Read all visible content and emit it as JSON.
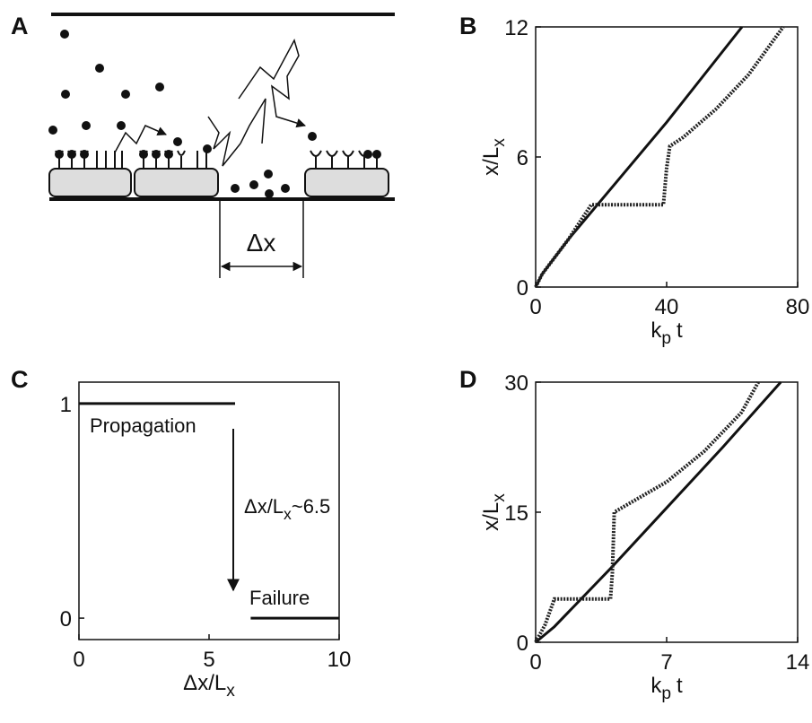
{
  "diagram": {
    "label": "A",
    "annotation": "Δx"
  },
  "chart_data": [
    {
      "type": "line",
      "label": "B",
      "xlabel": [
        "k",
        "p",
        "t"
      ],
      "ylabel": [
        "x/L",
        "x"
      ],
      "xlim": [
        0,
        80
      ],
      "ylim": [
        0,
        12
      ],
      "xticks": [
        0,
        40,
        80
      ],
      "yticks": [
        0,
        6,
        12
      ],
      "series": [
        {
          "color": "#111111",
          "style": "solid",
          "x": [
            0,
            2,
            10,
            20,
            40,
            63
          ],
          "values": [
            0,
            0.6,
            2.2,
            4.0,
            7.6,
            12
          ]
        },
        {
          "color": "#222222",
          "style": "dotted",
          "x": [
            0,
            2,
            10,
            17,
            39,
            40,
            41,
            45,
            55,
            65,
            75.6
          ],
          "values": [
            0,
            0.6,
            2.2,
            3.8,
            3.8,
            5.5,
            6.5,
            6.9,
            8.2,
            9.8,
            12
          ]
        }
      ]
    },
    {
      "type": "line",
      "label": "C",
      "xlabel": [
        "Δx/L",
        "x"
      ],
      "xlim": [
        0,
        10
      ],
      "ylim": [
        -0.1,
        1.1
      ],
      "xticks": [
        0,
        5,
        10
      ],
      "yticks": [
        0,
        1
      ],
      "annotations": [
        "Propagation",
        "Failure",
        [
          "Δx/L",
          "x",
          "~6.5"
        ]
      ],
      "series": [
        {
          "color": "#111111",
          "style": "solid",
          "x": [
            0,
            6
          ],
          "values": [
            1,
            1
          ]
        },
        {
          "color": "#111111",
          "style": "solid",
          "x": [
            6.6,
            10
          ],
          "values": [
            0,
            0
          ]
        }
      ]
    },
    {
      "type": "line",
      "label": "D",
      "xlabel": [
        "k",
        "p",
        "t"
      ],
      "ylabel": [
        "x/L",
        "x"
      ],
      "xlim": [
        0,
        14
      ],
      "ylim": [
        0,
        30
      ],
      "xticks": [
        0,
        7,
        14
      ],
      "yticks": [
        0,
        15,
        30
      ],
      "series": [
        {
          "color": "#111111",
          "style": "solid",
          "x": [
            0,
            1,
            4,
            7,
            10,
            13.1
          ],
          "values": [
            0,
            1.8,
            8.5,
            15.5,
            22.5,
            30
          ]
        },
        {
          "color": "#222222",
          "style": "dotted",
          "x": [
            0,
            0.5,
            1,
            4,
            4.1,
            4.2,
            5,
            7,
            9,
            11,
            11.9
          ],
          "values": [
            0,
            2,
            5,
            5,
            8,
            15,
            16,
            18.5,
            22,
            26.5,
            30
          ]
        }
      ]
    }
  ]
}
